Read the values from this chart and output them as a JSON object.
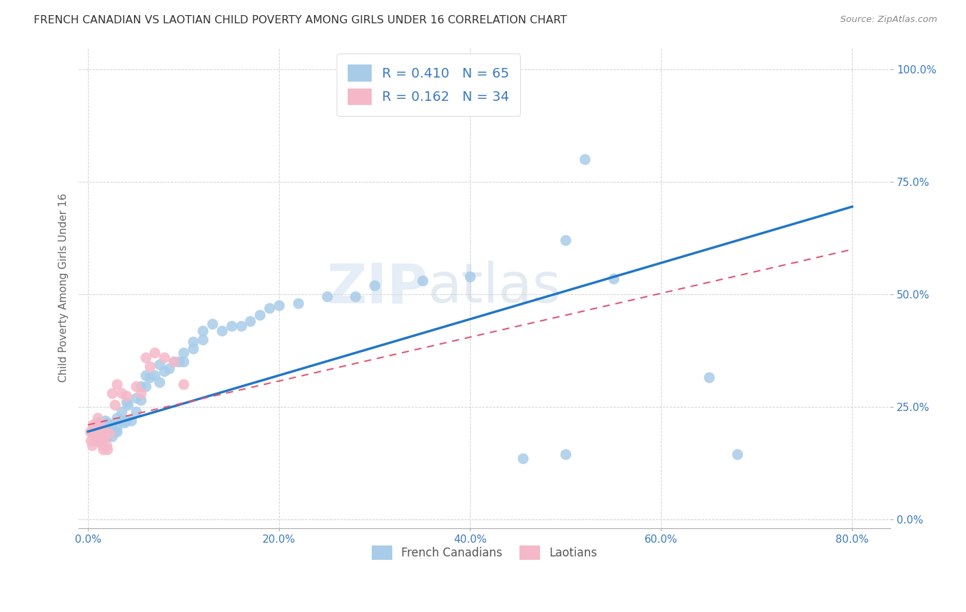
{
  "title": "FRENCH CANADIAN VS LAOTIAN CHILD POVERTY AMONG GIRLS UNDER 16 CORRELATION CHART",
  "source": "Source: ZipAtlas.com",
  "xlabel_ticks": [
    "0.0%",
    "",
    "",
    "",
    "",
    "",
    "",
    "",
    "20.0%",
    "",
    "",
    "",
    "",
    "",
    "",
    "",
    "40.0%",
    "",
    "",
    "",
    "",
    "",
    "",
    "",
    "60.0%",
    "",
    "",
    "",
    "",
    "",
    "",
    "",
    "80.0%"
  ],
  "xlabel_tick_vals": [
    0.0,
    0.025,
    0.05,
    0.075,
    0.1,
    0.125,
    0.15,
    0.175,
    0.2,
    0.225,
    0.25,
    0.275,
    0.3,
    0.325,
    0.35,
    0.375,
    0.4,
    0.425,
    0.45,
    0.475,
    0.5,
    0.525,
    0.55,
    0.575,
    0.6,
    0.625,
    0.65,
    0.675,
    0.7,
    0.725,
    0.75,
    0.775,
    0.8
  ],
  "ylabel_ticks": [
    "100.0%",
    "75.0%",
    "50.0%",
    "25.0%",
    "0.0%"
  ],
  "ylabel_tick_vals": [
    1.0,
    0.75,
    0.5,
    0.25,
    0.0
  ],
  "ylabel": "Child Poverty Among Girls Under 16",
  "legend_label1": "French Canadians",
  "legend_label2": "Laotians",
  "R1": "0.410",
  "N1": "65",
  "R2": "0.162",
  "N2": "34",
  "blue_color": "#a8cce8",
  "pink_color": "#f5b8c8",
  "blue_line_color": "#2176c7",
  "pink_line_color": "#e05575",
  "watermark_zip": "ZIP",
  "watermark_atlas": "atlas",
  "blue_points_x": [
    0.005,
    0.008,
    0.01,
    0.01,
    0.012,
    0.015,
    0.015,
    0.018,
    0.02,
    0.02,
    0.022,
    0.025,
    0.025,
    0.028,
    0.03,
    0.03,
    0.03,
    0.035,
    0.035,
    0.038,
    0.04,
    0.04,
    0.042,
    0.045,
    0.05,
    0.05,
    0.055,
    0.055,
    0.06,
    0.06,
    0.065,
    0.07,
    0.075,
    0.075,
    0.08,
    0.085,
    0.09,
    0.095,
    0.1,
    0.1,
    0.11,
    0.11,
    0.12,
    0.12,
    0.13,
    0.14,
    0.15,
    0.16,
    0.17,
    0.18,
    0.19,
    0.2,
    0.22,
    0.25,
    0.28,
    0.3,
    0.35,
    0.4,
    0.455,
    0.5,
    0.5,
    0.52,
    0.55,
    0.65,
    0.68
  ],
  "blue_points_y": [
    0.195,
    0.185,
    0.215,
    0.175,
    0.2,
    0.2,
    0.185,
    0.22,
    0.215,
    0.185,
    0.195,
    0.21,
    0.185,
    0.195,
    0.225,
    0.205,
    0.195,
    0.24,
    0.22,
    0.215,
    0.26,
    0.22,
    0.255,
    0.22,
    0.27,
    0.24,
    0.295,
    0.265,
    0.32,
    0.295,
    0.315,
    0.32,
    0.345,
    0.305,
    0.33,
    0.335,
    0.35,
    0.35,
    0.37,
    0.35,
    0.38,
    0.395,
    0.4,
    0.42,
    0.435,
    0.42,
    0.43,
    0.43,
    0.44,
    0.455,
    0.47,
    0.475,
    0.48,
    0.495,
    0.495,
    0.52,
    0.53,
    0.54,
    0.135,
    0.145,
    0.62,
    0.8,
    0.535,
    0.315,
    0.145
  ],
  "pink_points_x": [
    0.002,
    0.003,
    0.004,
    0.005,
    0.006,
    0.007,
    0.008,
    0.009,
    0.01,
    0.01,
    0.011,
    0.012,
    0.013,
    0.014,
    0.015,
    0.016,
    0.017,
    0.018,
    0.019,
    0.02,
    0.022,
    0.025,
    0.028,
    0.03,
    0.035,
    0.04,
    0.05,
    0.055,
    0.06,
    0.065,
    0.07,
    0.08,
    0.09,
    0.1
  ],
  "pink_points_y": [
    0.195,
    0.175,
    0.165,
    0.21,
    0.185,
    0.195,
    0.175,
    0.185,
    0.225,
    0.19,
    0.215,
    0.205,
    0.195,
    0.175,
    0.165,
    0.155,
    0.185,
    0.195,
    0.165,
    0.155,
    0.19,
    0.28,
    0.255,
    0.3,
    0.28,
    0.275,
    0.295,
    0.28,
    0.36,
    0.34,
    0.37,
    0.36,
    0.35,
    0.3
  ],
  "xlim": [
    -0.01,
    0.84
  ],
  "ylim": [
    -0.02,
    1.05
  ],
  "blue_line_x": [
    0.0,
    0.8
  ],
  "blue_line_y": [
    0.195,
    0.695
  ],
  "pink_line_x": [
    0.0,
    0.8
  ],
  "pink_line_y": [
    0.21,
    0.6
  ]
}
